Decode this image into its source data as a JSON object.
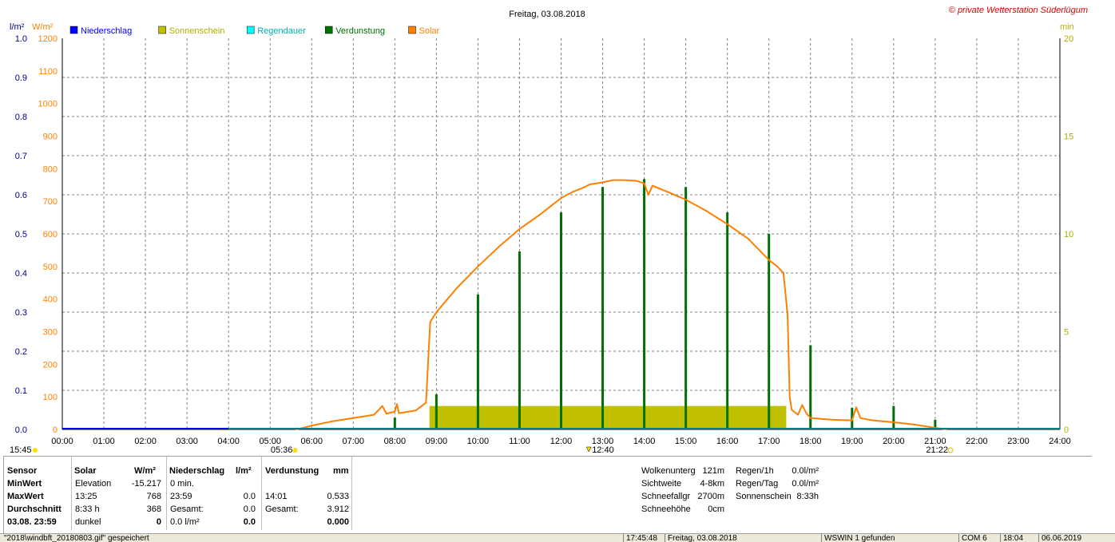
{
  "title": "Freitag, 03.08.2018",
  "copyright": "© private Wetterstation Süderlügum",
  "legend": [
    {
      "label": "Niederschlag",
      "color": "#0000ff"
    },
    {
      "label": "Sonnenschein",
      "color": "#c0c000"
    },
    {
      "label": "Regendauer",
      "color": "#00ffff"
    },
    {
      "label": "Verdunstung",
      "color": "#007000"
    },
    {
      "label": "Solar",
      "color": "#ff8000"
    }
  ],
  "axis_units": {
    "left_inner": "l/m²",
    "left_outer": "W/m²",
    "right": "min"
  },
  "colors": {
    "precip": "#0000ff",
    "solar": "#ff8000",
    "evap": "#007000",
    "sun": "#c0c000",
    "water": "#008080",
    "grid": "#808080"
  },
  "markers": {
    "sunrise": "05:36",
    "noon": "12:40",
    "sunset": "21:22",
    "daylength": "15:45"
  },
  "chart_data": {
    "type": "line",
    "x_range": [
      "00:00",
      "24:00"
    ],
    "x_ticks": [
      "00:00",
      "01:00",
      "02:00",
      "03:00",
      "04:00",
      "05:00",
      "06:00",
      "07:00",
      "08:00",
      "09:00",
      "10:00",
      "11:00",
      "12:00",
      "13:00",
      "14:00",
      "15:00",
      "16:00",
      "17:00",
      "18:00",
      "19:00",
      "20:00",
      "21:00",
      "22:00",
      "23:00",
      "24:00"
    ],
    "y_solar_ticks": [
      "0",
      "100",
      "200",
      "300",
      "400",
      "500",
      "600",
      "700",
      "800",
      "900",
      "1000",
      "1100",
      "1200"
    ],
    "y_precip_ticks": [
      "0.0",
      "0.1",
      "0.2",
      "0.3",
      "0.4",
      "0.5",
      "0.6",
      "0.7",
      "0.8",
      "0.9",
      "1.0"
    ],
    "y_minutes_ticks": [
      "0",
      "5",
      "10",
      "15",
      "20"
    ],
    "ylim_solar": [
      0,
      1200
    ],
    "ylim_precip": [
      0,
      1.0
    ],
    "ylim_minutes": [
      0,
      20
    ],
    "solar": [
      [
        5.6,
        0
      ],
      [
        5.8,
        5
      ],
      [
        6.0,
        12
      ],
      [
        6.5,
        25
      ],
      [
        7.0,
        35
      ],
      [
        7.5,
        45
      ],
      [
        7.7,
        72
      ],
      [
        7.8,
        48
      ],
      [
        8.0,
        55
      ],
      [
        8.05,
        78
      ],
      [
        8.1,
        50
      ],
      [
        8.5,
        58
      ],
      [
        8.75,
        82
      ],
      [
        8.85,
        330
      ],
      [
        9.0,
        360
      ],
      [
        9.5,
        435
      ],
      [
        10.0,
        500
      ],
      [
        10.5,
        560
      ],
      [
        11.0,
        615
      ],
      [
        11.5,
        660
      ],
      [
        12.0,
        710
      ],
      [
        12.3,
        730
      ],
      [
        12.5,
        740
      ],
      [
        12.7,
        752
      ],
      [
        13.0,
        758
      ],
      [
        13.25,
        765
      ],
      [
        13.5,
        765
      ],
      [
        13.8,
        763
      ],
      [
        14.0,
        755
      ],
      [
        14.1,
        720
      ],
      [
        14.2,
        748
      ],
      [
        14.5,
        732
      ],
      [
        15.0,
        705
      ],
      [
        15.5,
        670
      ],
      [
        16.0,
        630
      ],
      [
        16.5,
        585
      ],
      [
        17.0,
        520
      ],
      [
        17.2,
        500
      ],
      [
        17.35,
        480
      ],
      [
        17.45,
        350
      ],
      [
        17.5,
        100
      ],
      [
        17.55,
        60
      ],
      [
        17.7,
        45
      ],
      [
        17.8,
        75
      ],
      [
        17.9,
        50
      ],
      [
        18.0,
        35
      ],
      [
        18.5,
        30
      ],
      [
        19.0,
        28
      ],
      [
        19.1,
        68
      ],
      [
        19.2,
        35
      ],
      [
        19.5,
        28
      ],
      [
        20.0,
        22
      ],
      [
        20.5,
        15
      ],
      [
        21.0,
        5
      ],
      [
        21.3,
        0
      ]
    ],
    "evaporation_bars": [
      {
        "time": "08:00",
        "min": 0.6
      },
      {
        "time": "09:00",
        "min": 1.8
      },
      {
        "time": "10:00",
        "min": 6.9
      },
      {
        "time": "11:00",
        "min": 9.1
      },
      {
        "time": "12:00",
        "min": 11.1
      },
      {
        "time": "13:00",
        "min": 12.4
      },
      {
        "time": "14:00",
        "min": 12.8
      },
      {
        "time": "15:00",
        "min": 12.4
      },
      {
        "time": "16:00",
        "min": 11.1
      },
      {
        "time": "17:00",
        "min": 10.0
      },
      {
        "time": "18:00",
        "min": 4.3
      },
      {
        "time": "19:00",
        "min": 1.1
      },
      {
        "time": "20:00",
        "min": 1.2
      },
      {
        "time": "21:00",
        "min": 0.5
      }
    ],
    "sunshine_band": {
      "start": "08:50",
      "end": "17:25",
      "min": 1.2
    },
    "precipitation": 0.0
  },
  "table": {
    "headers": {
      "sensor": "Sensor",
      "solar": "Solar",
      "solar_unit": "W/m²",
      "precip": "Niederschlag",
      "precip_unit": "l/m²",
      "evap": "Verdunstung",
      "evap_unit": "mm"
    },
    "rows": [
      {
        "label": "MinWert",
        "c1": "Elevation",
        "c2": "-15.217",
        "c3": "0 min.",
        "c4": "",
        "c5": "",
        "c6": ""
      },
      {
        "label": "MaxWert",
        "c1": "13:25",
        "c2": "768",
        "c3": "23:59",
        "c4": "0.0",
        "c5": "14:01",
        "c6": "0.533"
      },
      {
        "label": "Durchschnitt",
        "c1": "8:33 h",
        "c2": "368",
        "c3": "Gesamt:",
        "c4": "0.0",
        "c5": "Gesamt:",
        "c6": "3.912"
      },
      {
        "label": "03.08. 23:59",
        "c1": "dunkel",
        "c2": "0",
        "c3": "0.0 l/m²",
        "c4": "0.0",
        "c5": "",
        "c6": "0.000"
      }
    ],
    "right": [
      {
        "k": "Wolkenunterg",
        "v": "121m",
        "k2": "Regen/1h",
        "v2": "0.0l/m²"
      },
      {
        "k": "Sichtweite",
        "v": "4-8km",
        "k2": "Regen/Tag",
        "v2": "0.0l/m²"
      },
      {
        "k": "Schneefallgr",
        "v": "2700m",
        "k2": "Sonnenschein",
        "v2": "8:33h"
      },
      {
        "k": "Schneehöhe",
        "v": "0cm",
        "k2": "",
        "v2": ""
      }
    ]
  },
  "statusbar": [
    "\"2018\\windbft_20180803.gif\" gespeichert",
    "17:45:48",
    "Freitag, 03.08.2018",
    "WSWIN 1 gefunden",
    "COM 6",
    "18:04",
    "06.06.2019"
  ]
}
